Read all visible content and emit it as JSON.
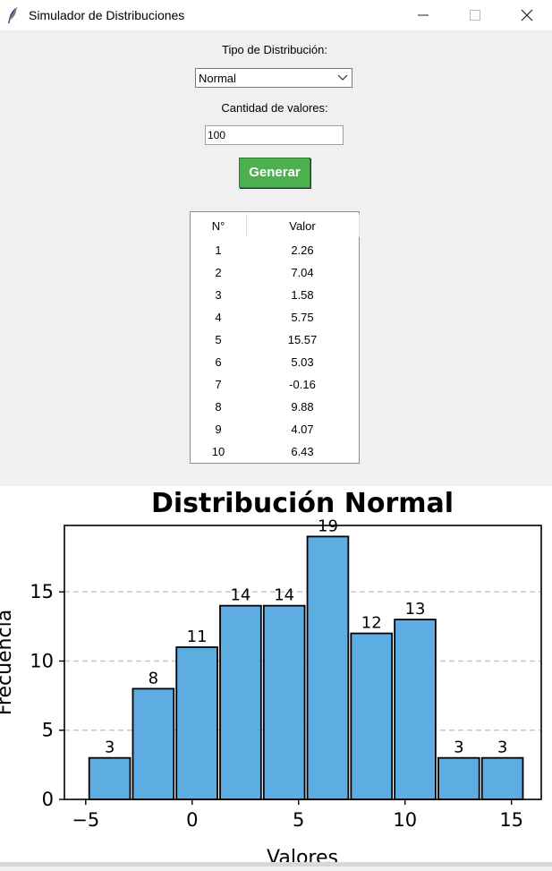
{
  "window": {
    "title": "Simulador de Distribuciones"
  },
  "form": {
    "dist_label": "Tipo de Distribución:",
    "dist_value": "Normal",
    "qty_label": "Cantidad de valores:",
    "qty_value": "100",
    "generate_label": "Generar"
  },
  "table": {
    "headers": [
      "N°",
      "Valor"
    ],
    "rows": [
      [
        "1",
        "2.26"
      ],
      [
        "2",
        "7.04"
      ],
      [
        "3",
        "1.58"
      ],
      [
        "4",
        "5.75"
      ],
      [
        "5",
        "15.57"
      ],
      [
        "6",
        "5.03"
      ],
      [
        "7",
        "-0.16"
      ],
      [
        "8",
        "9.88"
      ],
      [
        "9",
        "4.07"
      ],
      [
        "10",
        "6.43"
      ]
    ]
  },
  "chart_data": {
    "type": "bar",
    "title": "Distribución Normal",
    "xlabel": "Valores",
    "ylabel": "Frecuencia",
    "bin_edges": [
      -4.9,
      -2.85,
      -0.8,
      1.25,
      3.3,
      5.35,
      7.4,
      9.45,
      11.5,
      13.55,
      15.6
    ],
    "values": [
      3,
      8,
      11,
      14,
      14,
      19,
      12,
      13,
      3,
      3
    ],
    "xlim": [
      -6.0,
      16.4
    ],
    "ylim": [
      0,
      19.8
    ],
    "xticks": [
      -5,
      0,
      5,
      10,
      15
    ],
    "xtick_labels": [
      "−5",
      "0",
      "5",
      "10",
      "15"
    ],
    "yticks": [
      0,
      5,
      10,
      15
    ],
    "grid": "y-dashed",
    "bar_color": "#5dade2",
    "edge_color": "#000000"
  }
}
